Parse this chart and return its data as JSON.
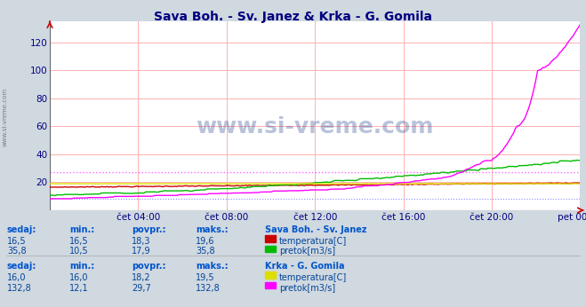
{
  "title": "Sava Boh. - Sv. Janez & Krka - G. Gomila",
  "title_color": "#000080",
  "title_fontsize": 10,
  "bg_color": "#d0d8e0",
  "plot_bg_color": "#ffffff",
  "watermark": "www.si-vreme.com",
  "ylim": [
    0,
    135
  ],
  "yticks": [
    20,
    40,
    60,
    80,
    100,
    120
  ],
  "grid_color": "#ffb0b0",
  "axis_color": "#000080",
  "axis_label_fontsize": 7.5,
  "xtick_labels": [
    "čet 04:00",
    "čet 08:00",
    "čet 12:00",
    "čet 16:00",
    "čet 20:00",
    "pet 00:00"
  ],
  "xtick_positions": [
    4,
    8,
    12,
    16,
    20,
    24
  ],
  "n_points": 288,
  "sava_temp_color": "#cc0000",
  "sava_pretok_color": "#00bb00",
  "krka_temp_color": "#dddd00",
  "krka_pretok_color": "#ff00ff",
  "blue_hline": 8,
  "pink_hline": 27,
  "bottom_bg": "#d8ecf8",
  "legend_title1": "Sava Boh. - Sv. Janez",
  "legend_title2": "Krka - G. Gomila",
  "table_label_color": "#0055cc",
  "table_value_color": "#004499",
  "table_headers": [
    "sedaj:",
    "min.:",
    "povpr.:",
    "maks.:"
  ],
  "sava_temp_vals": [
    16.5,
    16.5,
    18.3,
    19.6
  ],
  "sava_pretok_vals": [
    35.8,
    10.5,
    17.9,
    35.8
  ],
  "krka_temp_vals": [
    16.0,
    16.0,
    18.2,
    19.5
  ],
  "krka_pretok_vals": [
    132.8,
    12.1,
    29.7,
    132.8
  ],
  "left_label": "www.si-vreme.com"
}
